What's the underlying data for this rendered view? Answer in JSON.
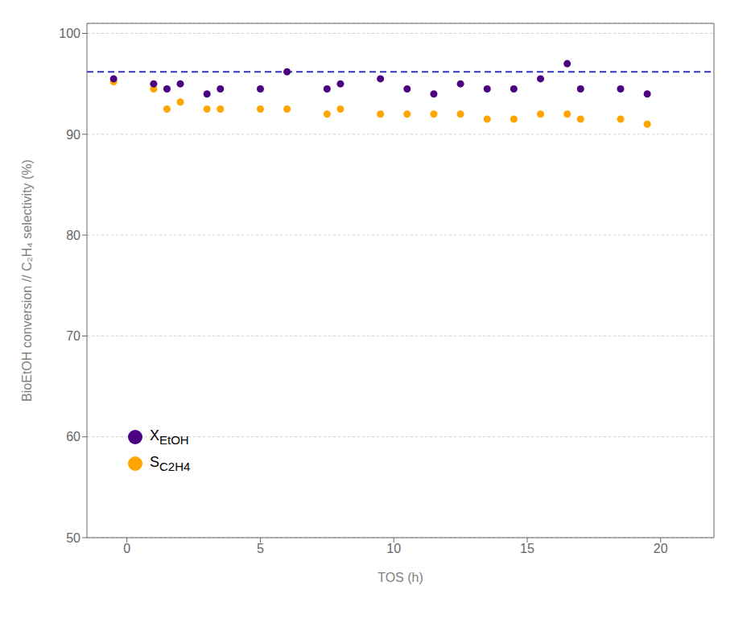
{
  "chart_data": {
    "type": "scatter",
    "x_label": "TOS (h)",
    "y_label": "BioEtOH conversion // C₂H₄ selectivity (%)",
    "xlim": [
      -1.5,
      22
    ],
    "xticks": [
      0,
      5,
      10,
      15,
      20
    ],
    "ylim": [
      50,
      101
    ],
    "yticks": [
      50,
      60,
      70,
      80,
      90,
      100
    ],
    "grid": "y",
    "legend": "lower left",
    "hlines": [
      {
        "y": 96.2,
        "color": "#3333BB",
        "line_style": "dashed"
      }
    ],
    "series": [
      {
        "name": "XEtOH",
        "color": "#4B0082",
        "marker": "circle",
        "x": [
          -0.5,
          1.0,
          1.5,
          2.0,
          3.0,
          3.5,
          5.0,
          6.0,
          7.5,
          8.0,
          9.5,
          10.5,
          11.5,
          12.5,
          13.5,
          14.5,
          15.5,
          16.5,
          17.0,
          18.5,
          19.5
        ],
        "values": [
          95.5,
          95.0,
          94.5,
          95.0,
          94.0,
          94.5,
          94.5,
          96.2,
          94.5,
          95.0,
          95.5,
          94.5,
          94.0,
          95.0,
          94.5,
          94.5,
          95.5,
          97.0,
          94.5,
          94.5,
          94.0
        ]
      },
      {
        "name": "SC2H4",
        "color": "#FFA500",
        "marker": "circle",
        "x": [
          -0.5,
          1.0,
          1.5,
          2.0,
          3.0,
          3.5,
          5.0,
          6.0,
          7.5,
          8.0,
          9.5,
          10.5,
          11.5,
          12.5,
          13.5,
          14.5,
          15.5,
          16.5,
          17.0,
          18.5,
          19.5
        ],
        "values": [
          95.2,
          94.5,
          92.5,
          93.2,
          92.5,
          92.5,
          92.5,
          92.5,
          92.0,
          92.5,
          92.0,
          92.0,
          92.0,
          92.0,
          91.5,
          91.5,
          92.0,
          92.0,
          91.5,
          91.5,
          91.0
        ]
      }
    ]
  }
}
